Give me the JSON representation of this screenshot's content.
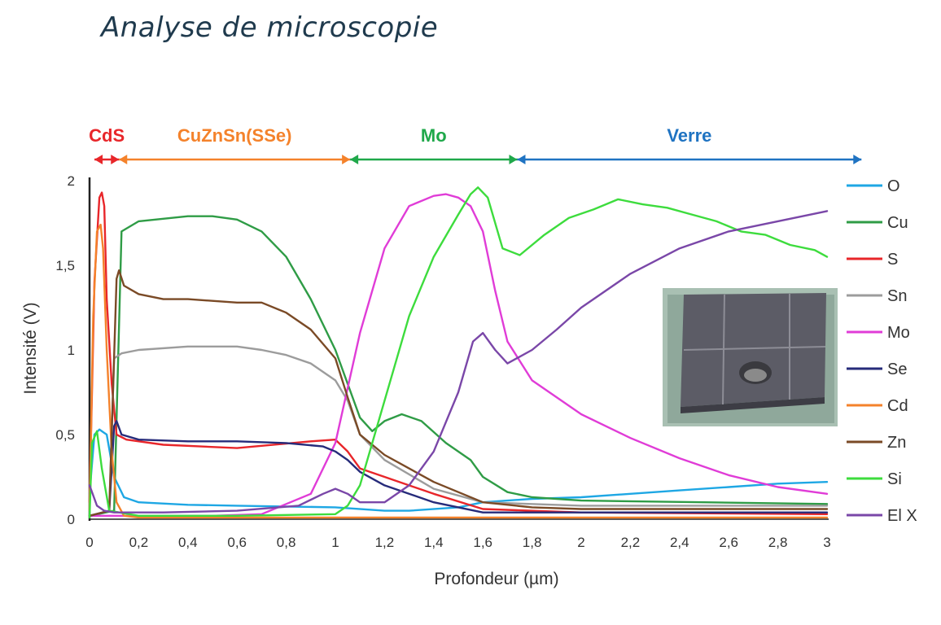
{
  "title": "Analyse de microscopie",
  "chart_data": {
    "type": "line",
    "xlabel": "Profondeur (µm)",
    "ylabel": "Intensité (V)",
    "xlim": [
      0,
      3
    ],
    "ylim": [
      0,
      2
    ],
    "xticks": [
      0,
      0.2,
      0.4,
      0.6,
      0.8,
      1,
      1.2,
      1.4,
      1.6,
      1.8,
      2,
      2.2,
      2.4,
      2.6,
      2.8,
      3
    ],
    "xtick_labels": [
      "0",
      "0,2",
      "0,4",
      "0,6",
      "0,8",
      "1",
      "1,2",
      "1,4",
      "1,6",
      "1,8",
      "2",
      "2,2",
      "2,4",
      "2,6",
      "2,8",
      "3"
    ],
    "yticks": [
      0,
      0.5,
      1,
      1.5,
      2
    ],
    "ytick_labels": [
      "0",
      "0,5",
      "1",
      "1,5",
      "2"
    ],
    "grid": false,
    "legend_position": "right",
    "regions": [
      {
        "label": "CdS",
        "x_start": 0.02,
        "x_end": 0.12,
        "color": "#e8262a"
      },
      {
        "label": "CuZnSn(SSe)",
        "x_start": 0.12,
        "x_end": 1.06,
        "color": "#f4822b"
      },
      {
        "label": "Mo",
        "x_start": 1.06,
        "x_end": 1.74,
        "color": "#1fa84a"
      },
      {
        "label": "Verre",
        "x_start": 1.74,
        "x_end": 3.14,
        "color": "#1f73c2"
      }
    ],
    "series": [
      {
        "name": "O",
        "color": "#1ea7e4",
        "x": [
          0,
          0.02,
          0.04,
          0.07,
          0.1,
          0.14,
          0.2,
          0.4,
          0.6,
          0.8,
          1.0,
          1.2,
          1.3,
          1.5,
          1.6,
          1.8,
          2.0,
          2.2,
          2.4,
          2.6,
          2.8,
          3.0
        ],
        "y": [
          0.15,
          0.5,
          0.53,
          0.5,
          0.25,
          0.13,
          0.1,
          0.085,
          0.08,
          0.075,
          0.07,
          0.05,
          0.05,
          0.07,
          0.1,
          0.12,
          0.13,
          0.15,
          0.17,
          0.19,
          0.21,
          0.22
        ]
      },
      {
        "name": "Cu",
        "color": "#2f9c46",
        "x": [
          0,
          0.1,
          0.13,
          0.2,
          0.4,
          0.5,
          0.6,
          0.7,
          0.8,
          0.9,
          1.0,
          1.05,
          1.1,
          1.15,
          1.2,
          1.27,
          1.35,
          1.45,
          1.55,
          1.6,
          1.7,
          1.8,
          2.0,
          2.5,
          3.0
        ],
        "y": [
          0.02,
          0.05,
          1.7,
          1.76,
          1.79,
          1.79,
          1.77,
          1.7,
          1.55,
          1.3,
          1.0,
          0.8,
          0.6,
          0.52,
          0.58,
          0.62,
          0.58,
          0.45,
          0.35,
          0.25,
          0.16,
          0.13,
          0.11,
          0.1,
          0.09
        ]
      },
      {
        "name": "S",
        "color": "#e8262a",
        "x": [
          0,
          0.02,
          0.04,
          0.05,
          0.06,
          0.07,
          0.09,
          0.11,
          0.15,
          0.3,
          0.6,
          0.9,
          1.0,
          1.05,
          1.1,
          1.2,
          1.4,
          1.6,
          2.0,
          3.0
        ],
        "y": [
          0.1,
          1.4,
          1.9,
          1.93,
          1.85,
          1.3,
          0.8,
          0.5,
          0.47,
          0.44,
          0.42,
          0.46,
          0.47,
          0.4,
          0.3,
          0.25,
          0.15,
          0.06,
          0.04,
          0.03
        ]
      },
      {
        "name": "Sn",
        "color": "#9c9c9c",
        "x": [
          0,
          0.08,
          0.1,
          0.13,
          0.2,
          0.4,
          0.6,
          0.7,
          0.8,
          0.9,
          1.0,
          1.05,
          1.1,
          1.2,
          1.4,
          1.6,
          2.0,
          3.0
        ],
        "y": [
          0.02,
          0.05,
          0.95,
          0.98,
          1.0,
          1.02,
          1.02,
          1.0,
          0.97,
          0.92,
          0.82,
          0.7,
          0.5,
          0.35,
          0.18,
          0.1,
          0.08,
          0.08
        ]
      },
      {
        "name": "Mo",
        "color": "#e03cd7",
        "x": [
          0,
          0.5,
          0.7,
          0.9,
          1.0,
          1.1,
          1.2,
          1.3,
          1.4,
          1.45,
          1.5,
          1.55,
          1.6,
          1.65,
          1.7,
          1.8,
          2.0,
          2.2,
          2.4,
          2.6,
          2.8,
          3.0
        ],
        "y": [
          0.02,
          0.02,
          0.03,
          0.15,
          0.45,
          1.1,
          1.6,
          1.85,
          1.91,
          1.92,
          1.9,
          1.85,
          1.7,
          1.35,
          1.05,
          0.82,
          0.62,
          0.48,
          0.36,
          0.26,
          0.19,
          0.15
        ]
      },
      {
        "name": "Se",
        "color": "#262b7a",
        "x": [
          0,
          0.08,
          0.1,
          0.11,
          0.13,
          0.2,
          0.4,
          0.6,
          0.8,
          0.95,
          1.0,
          1.05,
          1.1,
          1.2,
          1.4,
          1.6,
          2.0,
          3.0
        ],
        "y": [
          0.02,
          0.05,
          0.55,
          0.58,
          0.5,
          0.47,
          0.46,
          0.46,
          0.45,
          0.43,
          0.4,
          0.35,
          0.28,
          0.2,
          0.1,
          0.04,
          0.04,
          0.04
        ]
      },
      {
        "name": "Cd",
        "color": "#f4822b",
        "x": [
          0,
          0.015,
          0.03,
          0.045,
          0.055,
          0.07,
          0.09,
          0.11,
          0.14,
          0.2,
          3.0
        ],
        "y": [
          0.05,
          1.2,
          1.7,
          1.74,
          1.6,
          1.0,
          0.4,
          0.1,
          0.02,
          0.01,
          0.01
        ]
      },
      {
        "name": "Zn",
        "color": "#7a4a26",
        "x": [
          0,
          0.08,
          0.11,
          0.12,
          0.14,
          0.2,
          0.3,
          0.4,
          0.5,
          0.6,
          0.7,
          0.8,
          0.9,
          1.0,
          1.05,
          1.1,
          1.2,
          1.4,
          1.6,
          1.8,
          2.0,
          3.0
        ],
        "y": [
          0.02,
          0.05,
          1.42,
          1.47,
          1.38,
          1.33,
          1.3,
          1.3,
          1.29,
          1.28,
          1.28,
          1.22,
          1.12,
          0.95,
          0.72,
          0.5,
          0.38,
          0.22,
          0.1,
          0.07,
          0.06,
          0.06
        ]
      },
      {
        "name": "Si",
        "color": "#3ddc3d",
        "x": [
          0,
          0.01,
          0.03,
          0.05,
          0.08,
          0.2,
          0.6,
          1.0,
          1.05,
          1.1,
          1.2,
          1.3,
          1.4,
          1.5,
          1.55,
          1.58,
          1.62,
          1.68,
          1.75,
          1.85,
          1.95,
          2.05,
          2.15,
          2.25,
          2.35,
          2.45,
          2.55,
          2.65,
          2.75,
          2.85,
          2.95,
          3.0
        ],
        "y": [
          0.01,
          0.45,
          0.52,
          0.3,
          0.05,
          0.02,
          0.02,
          0.03,
          0.08,
          0.2,
          0.7,
          1.2,
          1.55,
          1.8,
          1.92,
          1.96,
          1.9,
          1.6,
          1.56,
          1.68,
          1.78,
          1.83,
          1.89,
          1.86,
          1.84,
          1.8,
          1.76,
          1.7,
          1.68,
          1.62,
          1.59,
          1.55
        ]
      },
      {
        "name": "El X",
        "color": "#7a47a8",
        "x": [
          0,
          0.03,
          0.06,
          0.1,
          0.3,
          0.6,
          0.85,
          0.95,
          1.0,
          1.05,
          1.1,
          1.2,
          1.3,
          1.4,
          1.5,
          1.56,
          1.6,
          1.65,
          1.7,
          1.8,
          1.9,
          2.0,
          2.2,
          2.4,
          2.6,
          2.8,
          3.0
        ],
        "y": [
          0.2,
          0.08,
          0.05,
          0.04,
          0.04,
          0.05,
          0.08,
          0.15,
          0.18,
          0.15,
          0.1,
          0.1,
          0.2,
          0.4,
          0.75,
          1.05,
          1.1,
          1.0,
          0.92,
          1.0,
          1.12,
          1.25,
          1.45,
          1.6,
          1.7,
          1.76,
          1.82
        ]
      }
    ]
  }
}
